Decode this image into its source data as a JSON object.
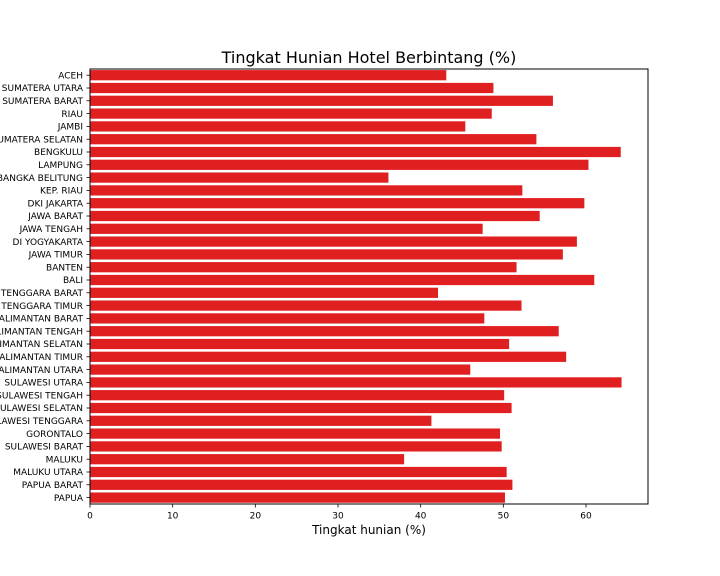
{
  "chart_data": {
    "type": "bar",
    "orientation": "horizontal",
    "title": "Tingkat Hunian Hotel Berbintang (%)",
    "xlabel": "Tingkat hunian (%)",
    "ylabel": "",
    "xlim": [
      0,
      67.5
    ],
    "xticks": [
      "0",
      "10",
      "20",
      "30",
      "40",
      "50",
      "60"
    ],
    "grid": false,
    "bar_color": "#e02020",
    "categories": [
      "ACEH",
      "SUMATERA UTARA",
      "SUMATERA BARAT",
      "RIAU",
      "JAMBI",
      "SUMATERA SELATAN",
      "BENGKULU",
      "LAMPUNG",
      "BANGKA BELITUNG",
      "KEP. RIAU",
      "DKI JAKARTA",
      "JAWA BARAT",
      "JAWA TENGAH",
      "DI YOGYAKARTA",
      "JAWA TIMUR",
      "BANTEN",
      "BALI",
      "NUSA TENGGARA BARAT",
      "NUSA TENGGARA TIMUR",
      "KALIMANTAN BARAT",
      "KALIMANTAN TENGAH",
      "KALIMANTAN SELATAN",
      "KALIMANTAN TIMUR",
      "KALIMANTAN UTARA",
      "SULAWESI UTARA",
      "SULAWESI TENGAH",
      "SULAWESI SELATAN",
      "SULAWESI TENGGARA",
      "GORONTALO",
      "SULAWESI BARAT",
      "MALUKU",
      "MALUKU UTARA",
      "PAPUA BARAT",
      "PAPUA"
    ],
    "values": [
      43.1,
      48.8,
      56.0,
      48.6,
      45.4,
      54.0,
      64.2,
      60.3,
      36.1,
      52.3,
      59.8,
      54.4,
      47.5,
      58.9,
      57.2,
      51.6,
      61.0,
      42.1,
      52.2,
      47.7,
      56.7,
      50.7,
      57.6,
      46.0,
      64.3,
      50.1,
      51.0,
      41.3,
      49.6,
      49.8,
      38.0,
      50.4,
      51.1,
      50.2
    ]
  }
}
